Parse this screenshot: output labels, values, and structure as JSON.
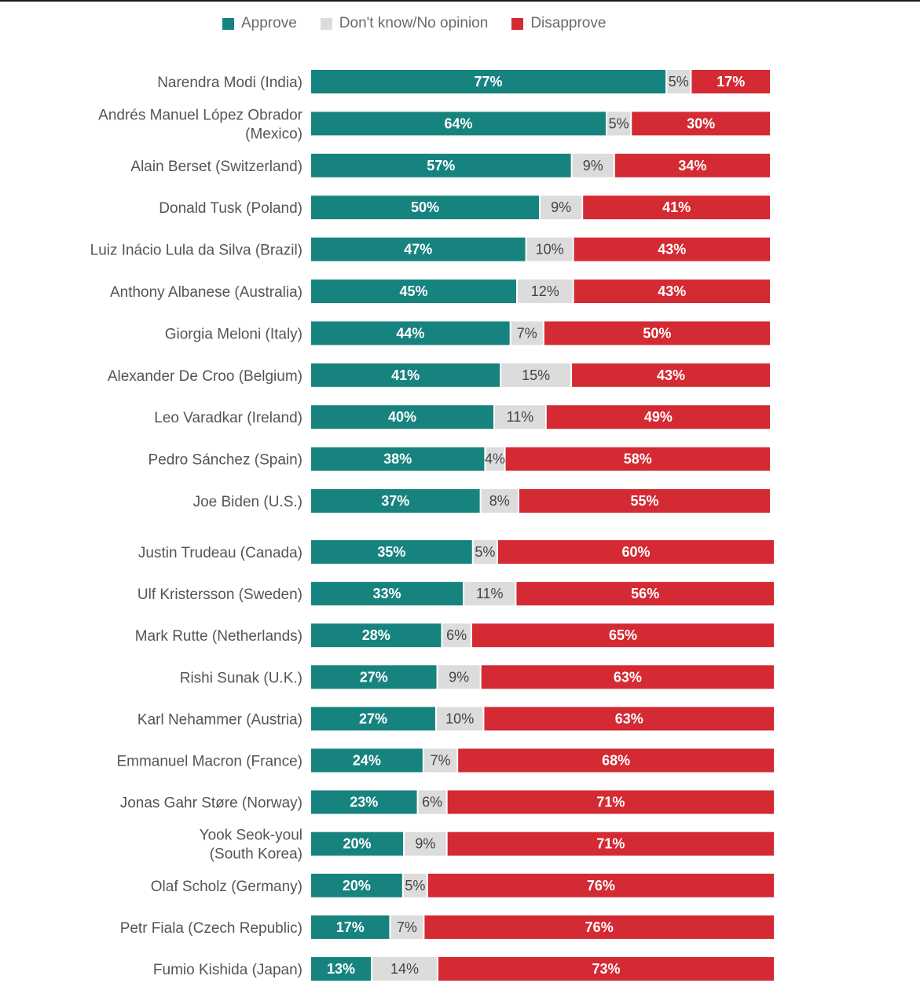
{
  "chart_data": {
    "type": "bar",
    "orientation": "horizontal-stacked",
    "legend": [
      {
        "name": "Approve",
        "color": "#17837f"
      },
      {
        "name": "Don't know/No opinion",
        "color": "#dcdcdc"
      },
      {
        "name": "Disapprove",
        "color": "#d42a33"
      }
    ],
    "rows": [
      {
        "label": [
          "Narendra Modi (India)"
        ],
        "approve": 77,
        "dk": 5,
        "disapprove": 17,
        "dk_label": "5%"
      },
      {
        "label": [
          "Andrés Manuel López Obrador",
          "(Mexico)"
        ],
        "approve": 64,
        "dk": 5,
        "disapprove": 30,
        "dk_label": "5%"
      },
      {
        "label": [
          "Alain Berset (Switzerland)"
        ],
        "approve": 57,
        "dk": 9,
        "disapprove": 34,
        "dk_label": "9%"
      },
      {
        "label": [
          "Donald Tusk (Poland)"
        ],
        "approve": 50,
        "dk": 9,
        "disapprove": 41,
        "dk_label": "9%"
      },
      {
        "label": [
          "Luiz Inácio Lula da Silva (Brazil)"
        ],
        "approve": 47,
        "dk": 10,
        "disapprove": 43,
        "dk_label": "10%"
      },
      {
        "label": [
          "Anthony Albanese (Australia)"
        ],
        "approve": 45,
        "dk": 12,
        "disapprove": 43,
        "dk_label": "12%"
      },
      {
        "label": [
          "Giorgia Meloni (Italy)"
        ],
        "approve": 44,
        "dk": 7,
        "disapprove": 50,
        "dk_label": "7%"
      },
      {
        "label": [
          "Alexander De Croo (Belgium)"
        ],
        "approve": 41,
        "dk": 15,
        "disapprove": 43,
        "dk_label": "15%"
      },
      {
        "label": [
          "Leo Varadkar (Ireland)"
        ],
        "approve": 40,
        "dk": 11,
        "disapprove": 49,
        "dk_label": "11%"
      },
      {
        "label": [
          "Pedro Sánchez (Spain)"
        ],
        "approve": 38,
        "dk": 4,
        "disapprove": 58,
        "dk_label": "4%"
      },
      {
        "label": [
          "Joe Biden (U.S.)"
        ],
        "approve": 37,
        "dk": 8,
        "disapprove": 55,
        "dk_label": "8%"
      },
      {
        "label": [
          "Justin Trudeau (Canada)"
        ],
        "approve": 35,
        "dk": 5,
        "disapprove": 60,
        "dk_label": "5%"
      },
      {
        "label": [
          "Ulf Kristersson (Sweden)"
        ],
        "approve": 33,
        "dk": 11,
        "disapprove": 56,
        "dk_label": "11%"
      },
      {
        "label": [
          "Mark Rutte (Netherlands)"
        ],
        "approve": 28,
        "dk": 6,
        "disapprove": 65,
        "dk_label": "6%"
      },
      {
        "label": [
          "Rishi Sunak (U.K.)"
        ],
        "approve": 27,
        "dk": 9,
        "disapprove": 63,
        "dk_label": "9%"
      },
      {
        "label": [
          "Karl Nehammer (Austria)"
        ],
        "approve": 27,
        "dk": 10,
        "disapprove": 63,
        "dk_label": "10%"
      },
      {
        "label": [
          "Emmanuel Macron (France)"
        ],
        "approve": 24,
        "dk": 7,
        "disapprove": 68,
        "dk_label": "7%"
      },
      {
        "label": [
          "Jonas Gahr Støre (Norway)"
        ],
        "approve": 23,
        "dk": 6,
        "disapprove": 71,
        "dk_label": "6%"
      },
      {
        "label": [
          "Yook Seok-youl",
          "(South Korea)"
        ],
        "approve": 20,
        "dk": 9,
        "disapprove": 71,
        "dk_label": "9%"
      },
      {
        "label": [
          "Olaf Scholz (Germany)"
        ],
        "approve": 20,
        "dk": 5,
        "disapprove": 76,
        "dk_label": "5%"
      },
      {
        "label": [
          "Petr Fiala (Czech Republic)"
        ],
        "approve": 17,
        "dk": 7,
        "disapprove": 76,
        "dk_label": "7%"
      },
      {
        "label": [
          "Fumio Kishida (Japan)"
        ],
        "approve": 13,
        "dk": 14,
        "disapprove": 73,
        "dk_label": "14%"
      }
    ]
  }
}
